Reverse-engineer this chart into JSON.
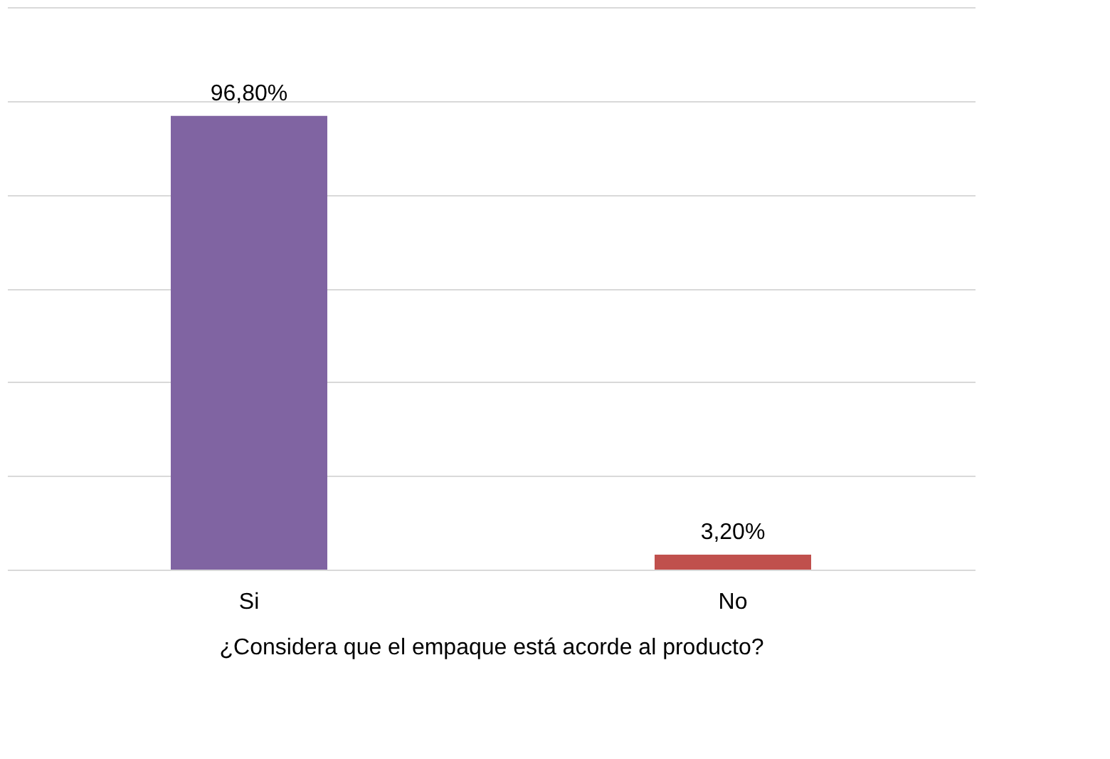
{
  "chart_data": {
    "type": "bar",
    "xlabel": "¿Considera que el empaque está acorde al producto?",
    "categories": [
      "Si",
      "No"
    ],
    "values": [
      96.8,
      3.2
    ],
    "colors": [
      "#8064a2",
      "#c0504d"
    ],
    "value_labels": [
      "96,80%",
      "3,20%"
    ],
    "ylim": [
      0,
      120
    ],
    "yticks": [
      {
        "value": 0,
        "label": null
      },
      {
        "value": 20,
        "label": null
      },
      {
        "value": 40,
        "label": null
      },
      {
        "value": 60,
        "label": null
      },
      {
        "value": 80,
        "label": null
      },
      {
        "value": 100,
        "label": null
      },
      {
        "value": 120,
        "label": null
      }
    ],
    "grid": "y",
    "tick_labels": "x"
  }
}
